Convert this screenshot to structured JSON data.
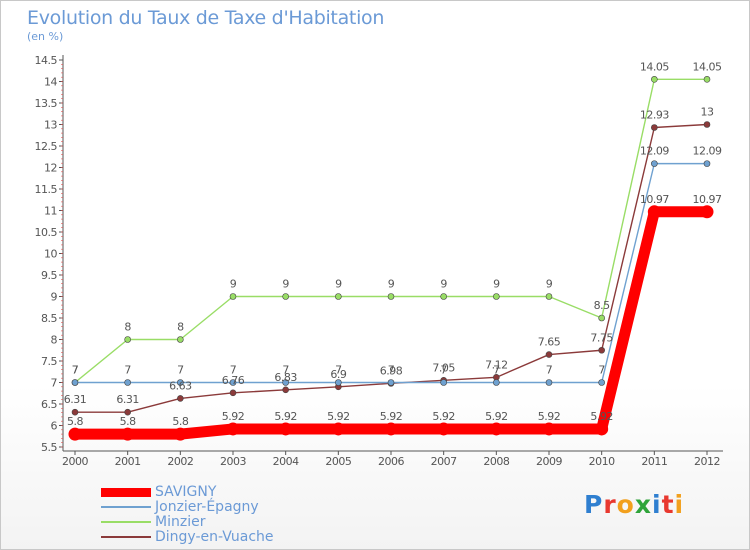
{
  "chart_data": {
    "type": "line",
    "title": "Evolution du Taux de Taxe d'Habitation",
    "unit_label": "(en %)",
    "x": [
      "2000",
      "2001",
      "2002",
      "2003",
      "2004",
      "2005",
      "2006",
      "2007",
      "2008",
      "2009",
      "2010",
      "2011",
      "2012"
    ],
    "ylim": [
      5.5,
      14.5
    ],
    "yticks": [
      "5.5",
      "6",
      "6.5",
      "7",
      "7.5",
      "8",
      "8.5",
      "9",
      "9.5",
      "10",
      "10.5",
      "11",
      "11.5",
      "12",
      "12.5",
      "13",
      "13.5",
      "14",
      "14.5"
    ],
    "grid": false,
    "legend_position": "bottom-left",
    "series": [
      {
        "name": "SAVIGNY",
        "color": "#ff0000",
        "values": [
          5.8,
          5.8,
          5.8,
          5.92,
          5.92,
          5.92,
          5.92,
          5.92,
          5.92,
          5.92,
          5.92,
          10.97,
          10.97
        ],
        "labels": [
          "5.8",
          "5.8",
          "5.8",
          "5.92",
          "5.92",
          "5.92",
          "5.92",
          "5.92",
          "5.92",
          "5.92",
          "5.92",
          "10.97",
          "10.97"
        ]
      },
      {
        "name": "Jonzier-Épagny",
        "color": "#6fa1d0",
        "values": [
          7,
          7,
          7,
          7,
          7,
          7,
          7,
          7,
          7,
          7,
          7,
          12.09,
          12.09
        ],
        "labels": [
          "7",
          "7",
          "7",
          "7",
          "7",
          "7",
          "7",
          "7",
          "7",
          "7",
          "7",
          "12.09",
          "12.09"
        ]
      },
      {
        "name": "Minzier",
        "color": "#99dd66",
        "values": [
          7,
          8,
          8,
          9,
          9,
          9,
          9,
          9,
          9,
          9,
          8.5,
          14.05,
          14.05
        ],
        "labels": [
          "7",
          "8",
          "8",
          "9",
          "9",
          "9",
          "9",
          "9",
          "9",
          "9",
          "8.5",
          "14.05",
          "14.05"
        ]
      },
      {
        "name": "Dingy-en-Vuache",
        "color": "#8b3a3a",
        "values": [
          6.31,
          6.31,
          6.63,
          6.76,
          6.83,
          6.9,
          6.98,
          7.05,
          7.12,
          7.65,
          7.75,
          12.93,
          13
        ],
        "labels": [
          "6.31",
          "6.31",
          "6.63",
          "6.76",
          "6.83",
          "6.9",
          "6.98",
          "7.05",
          "7.12",
          "7.65",
          "7.75",
          "12.93",
          "13"
        ]
      }
    ]
  },
  "logo": {
    "text": "Proxiti",
    "letters": [
      {
        "ch": "P",
        "color": "#2f7fd0"
      },
      {
        "ch": "r",
        "color": "#e8382f"
      },
      {
        "ch": "o",
        "color": "#f2a01d"
      },
      {
        "ch": "x",
        "color": "#2fa43a"
      },
      {
        "ch": "i",
        "color": "#2f7fd0"
      },
      {
        "ch": "t",
        "color": "#e8382f"
      },
      {
        "ch": "i",
        "color": "#f2a01d"
      }
    ]
  }
}
